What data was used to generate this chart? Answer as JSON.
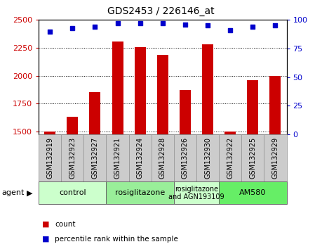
{
  "title": "GDS2453 / 226146_at",
  "samples": [
    "GSM132919",
    "GSM132923",
    "GSM132927",
    "GSM132921",
    "GSM132924",
    "GSM132928",
    "GSM132926",
    "GSM132930",
    "GSM132922",
    "GSM132925",
    "GSM132929"
  ],
  "counts": [
    1503,
    1635,
    1855,
    2310,
    2255,
    2190,
    1870,
    2280,
    1500,
    1960,
    2000
  ],
  "percentiles": [
    90,
    93,
    94,
    97,
    97,
    97,
    96,
    95,
    91,
    94,
    95
  ],
  "ylim_left": [
    1475,
    2500
  ],
  "ylim_right": [
    0,
    100
  ],
  "yticks_left": [
    1500,
    1750,
    2000,
    2250,
    2500
  ],
  "yticks_right": [
    0,
    25,
    50,
    75,
    100
  ],
  "bar_color": "#cc0000",
  "dot_color": "#0000cc",
  "groups": [
    {
      "label": "control",
      "start": 0,
      "end": 2,
      "color": "#ccffcc"
    },
    {
      "label": "rosiglitazone",
      "start": 3,
      "end": 5,
      "color": "#99ee99"
    },
    {
      "label": "rosiglitazone\nand AGN193109",
      "start": 6,
      "end": 7,
      "color": "#ccffcc"
    },
    {
      "label": "AM580",
      "start": 8,
      "end": 10,
      "color": "#66ee66"
    }
  ],
  "agent_label": "agent",
  "legend_count_label": "count",
  "legend_pct_label": "percentile rank within the sample",
  "tick_color_left": "#cc0000",
  "tick_color_right": "#0000cc",
  "sample_box_color": "#cccccc",
  "sample_box_edge": "#999999"
}
